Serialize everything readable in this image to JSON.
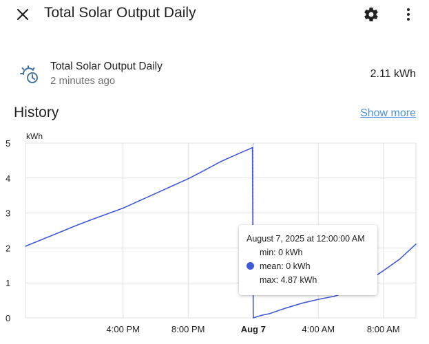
{
  "dialog": {
    "title": "Total Solar Output Daily",
    "close_icon": "close-icon",
    "settings_icon": "gear-icon",
    "menu_icon": "dots-vertical-icon"
  },
  "entity": {
    "name": "Total Solar Output Daily",
    "last_changed": "2 minutes ago",
    "value": "2.11 kWh",
    "icon": "solar-clock-icon"
  },
  "history": {
    "title": "History",
    "show_more": "Show more"
  },
  "chart_data": {
    "type": "line",
    "ylabel": "kWh",
    "ylim": [
      0,
      5
    ],
    "yticks": [
      "0",
      "1",
      "2",
      "3",
      "4",
      "5"
    ],
    "xticks": [
      "4:00 PM",
      "8:00 PM",
      "Aug 7",
      "4:00 AM",
      "8:00 AM"
    ],
    "xlim_hours": [
      -14,
      10
    ],
    "series": [
      {
        "color": "#4059d8",
        "points": [
          [
            -14,
            2.05
          ],
          [
            -13,
            2.24
          ],
          [
            -12,
            2.43
          ],
          [
            -11,
            2.62
          ],
          [
            -10,
            2.8
          ],
          [
            -9,
            2.97
          ],
          [
            -8,
            3.14
          ],
          [
            -7,
            3.35
          ],
          [
            -6,
            3.56
          ],
          [
            -5,
            3.77
          ],
          [
            -4,
            3.98
          ],
          [
            -3,
            4.22
          ],
          [
            -2,
            4.47
          ],
          [
            -1,
            4.68
          ],
          [
            -0.5,
            4.78
          ],
          [
            -0.05,
            4.87
          ],
          [
            0,
            0.0
          ],
          [
            0.5,
            0.07
          ],
          [
            1,
            0.12
          ],
          [
            2,
            0.28
          ],
          [
            3,
            0.42
          ],
          [
            4,
            0.53
          ],
          [
            5,
            0.62
          ],
          [
            6,
            0.78
          ],
          [
            7,
            1.04
          ],
          [
            8,
            1.35
          ],
          [
            9,
            1.68
          ],
          [
            10,
            2.11
          ]
        ]
      }
    ],
    "grid": true,
    "tooltip": {
      "date": "August 7, 2025 at 12:00:00 AM",
      "min": "min: 0 kWh",
      "mean": "mean: 0 kWh",
      "max": "max: 4.87 kWh",
      "marker_hour": 0
    }
  }
}
